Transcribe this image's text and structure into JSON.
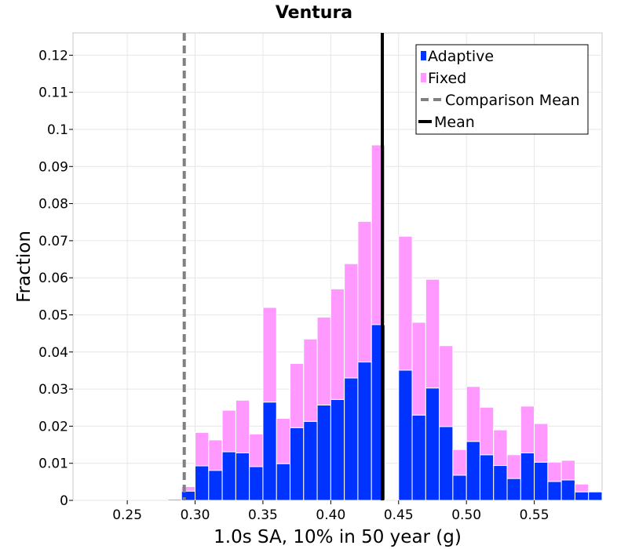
{
  "chart_data": {
    "type": "bar",
    "stacked": true,
    "title": "Ventura",
    "xlabel": "1.0s SA, 10% in 50 year (g)",
    "ylabel": "Fraction",
    "xlim": [
      0.21,
      0.6
    ],
    "ylim": [
      0,
      0.126
    ],
    "grid": true,
    "bin_width": 0.01,
    "x_ticks": [
      0.25,
      0.3,
      0.35,
      0.4,
      0.45,
      0.5,
      0.55
    ],
    "x_tick_labels": [
      "0.25",
      "0.30",
      "0.35",
      "0.40",
      "0.45",
      "0.50",
      "0.55"
    ],
    "y_ticks": [
      0,
      0.01,
      0.02,
      0.03,
      0.04,
      0.05,
      0.06,
      0.07,
      0.08,
      0.09,
      0.1,
      0.11,
      0.12
    ],
    "y_tick_labels": [
      "0",
      "0.01",
      "0.02",
      "0.03",
      "0.04",
      "0.05",
      "0.06",
      "0.07",
      "0.08",
      "0.09",
      "0.1",
      "0.11",
      "0.12"
    ],
    "bin_starts": [
      0.28,
      0.29,
      0.3,
      0.31,
      0.32,
      0.33,
      0.34,
      0.35,
      0.36,
      0.37,
      0.38,
      0.39,
      0.4,
      0.41,
      0.42,
      0.43,
      0.44,
      0.45,
      0.46,
      0.47,
      0.48,
      0.49,
      0.5,
      0.51,
      0.52,
      0.53,
      0.54,
      0.55,
      0.56,
      0.57,
      0.58,
      0.59
    ],
    "series": [
      {
        "name": "Adaptive",
        "color": "#0033ff",
        "values": [
          0.0003,
          0.0025,
          0.0093,
          0.0081,
          0.0131,
          0.0128,
          0.0091,
          0.0265,
          0.0099,
          0.0196,
          0.0213,
          0.0257,
          0.0272,
          0.033,
          0.0373,
          0.0474,
          0.0,
          0.0351,
          0.023,
          0.0303,
          0.0199,
          0.0068,
          0.0159,
          0.0123,
          0.0094,
          0.0059,
          0.0128,
          0.0103,
          0.0051,
          0.0055,
          0.0023,
          0.0023
        ]
      },
      {
        "name": "Fixed",
        "color": "#ff99ff",
        "values": [
          0.0,
          0.0012,
          0.009,
          0.0082,
          0.0112,
          0.0142,
          0.0088,
          0.0255,
          0.0122,
          0.0173,
          0.0222,
          0.0237,
          0.0298,
          0.0308,
          0.0379,
          0.0484,
          0.0,
          0.0361,
          0.025,
          0.0293,
          0.0218,
          0.0069,
          0.0148,
          0.0128,
          0.0096,
          0.0064,
          0.0126,
          0.0104,
          0.0052,
          0.0053,
          0.0021,
          0.0002
        ]
      }
    ],
    "mean_lines": [
      {
        "name": "Mean",
        "x": 0.438,
        "color": "#000000",
        "style": "solid"
      },
      {
        "name": "Comparison Mean",
        "x": 0.292,
        "color": "#808080",
        "style": "dashed"
      }
    ],
    "legend_position": "top-right",
    "legend": [
      {
        "label": "Adaptive",
        "color": "#0033ff",
        "kind": "box"
      },
      {
        "label": "Fixed",
        "color": "#ff99ff",
        "kind": "box"
      },
      {
        "label": "Comparison Mean",
        "color": "#808080",
        "kind": "dash"
      },
      {
        "label": "Mean",
        "color": "#000000",
        "kind": "line"
      }
    ]
  }
}
